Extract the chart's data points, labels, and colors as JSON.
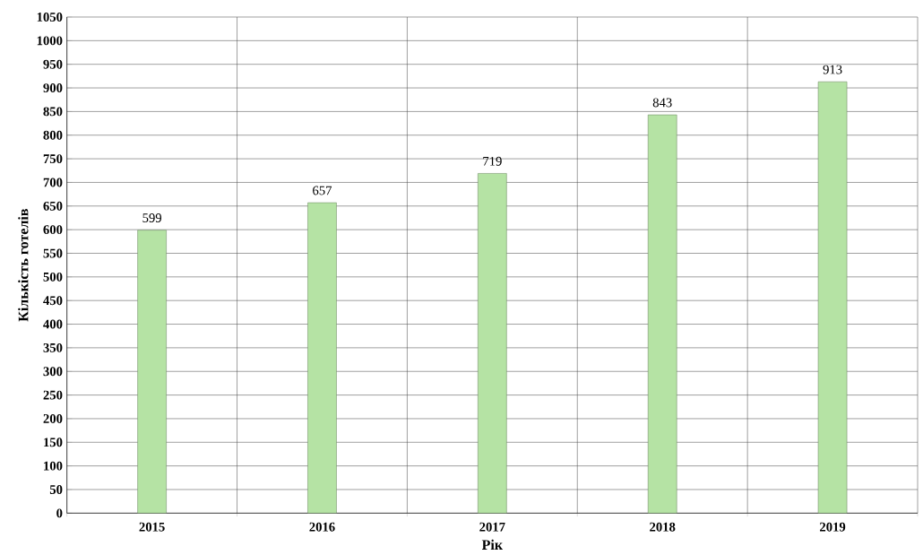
{
  "chart_data": {
    "type": "bar",
    "xlabel": "Рік",
    "ylabel": "Кількість готелів",
    "categories": [
      "2015",
      "2016",
      "2017",
      "2018",
      "2019"
    ],
    "values": [
      599,
      657,
      719,
      843,
      913
    ],
    "color": "#b5e3a4",
    "ylim": [
      0,
      1050
    ],
    "yticks": [
      0,
      50,
      100,
      150,
      200,
      250,
      300,
      350,
      400,
      450,
      500,
      550,
      600,
      650,
      700,
      750,
      800,
      850,
      900,
      950,
      1000,
      1050
    ],
    "grid": true,
    "data_labels": true
  }
}
